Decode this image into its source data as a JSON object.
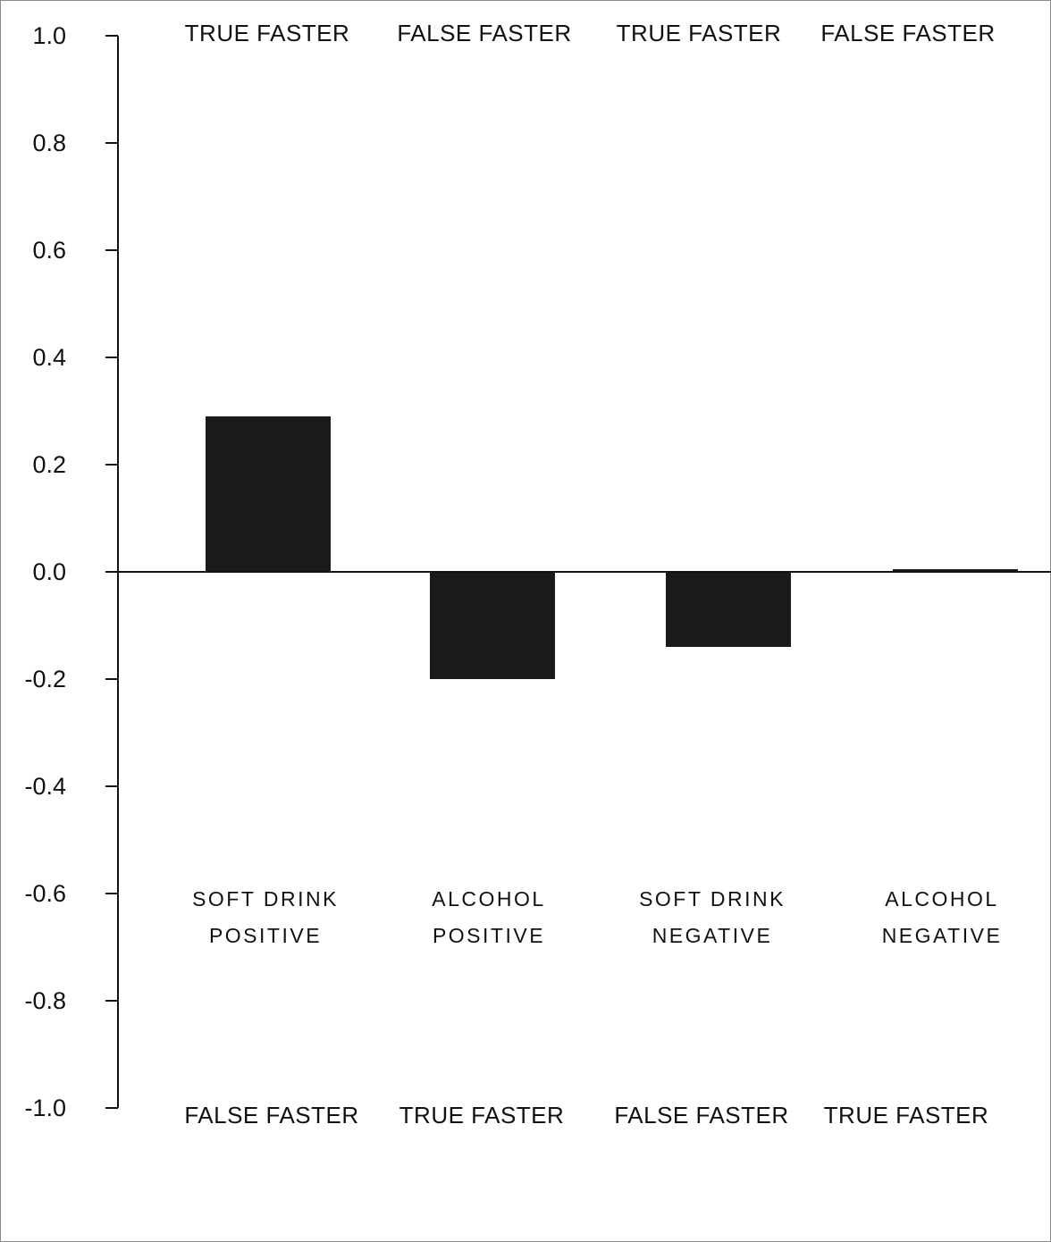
{
  "chart_data": {
    "type": "bar",
    "categories": [
      [
        "SOFT DRINK",
        "POSITIVE"
      ],
      [
        "ALCOHOL",
        "POSITIVE"
      ],
      [
        "SOFT DRINK",
        "NEGATIVE"
      ],
      [
        "ALCOHOL",
        "NEGATIVE"
      ]
    ],
    "values": [
      0.29,
      -0.2,
      -0.14,
      0.005
    ],
    "ylim": [
      -1.0,
      1.0
    ],
    "yticks": [
      "1.0",
      "0.8",
      "0.6",
      "0.4",
      "0.2",
      "0.0",
      "-0.2",
      "-0.4",
      "-0.6",
      "-0.8",
      "-1.0"
    ],
    "top_labels": [
      "TRUE FASTER",
      "FALSE FASTER",
      "TRUE FASTER",
      "FALSE FASTER"
    ],
    "bottom_labels": [
      "FALSE FASTER",
      "TRUE FASTER",
      "FALSE FASTER",
      "TRUE FASTER"
    ],
    "bar_color": "#1a1a1a",
    "title": "",
    "xlabel": "",
    "ylabel": "",
    "grid": false
  }
}
